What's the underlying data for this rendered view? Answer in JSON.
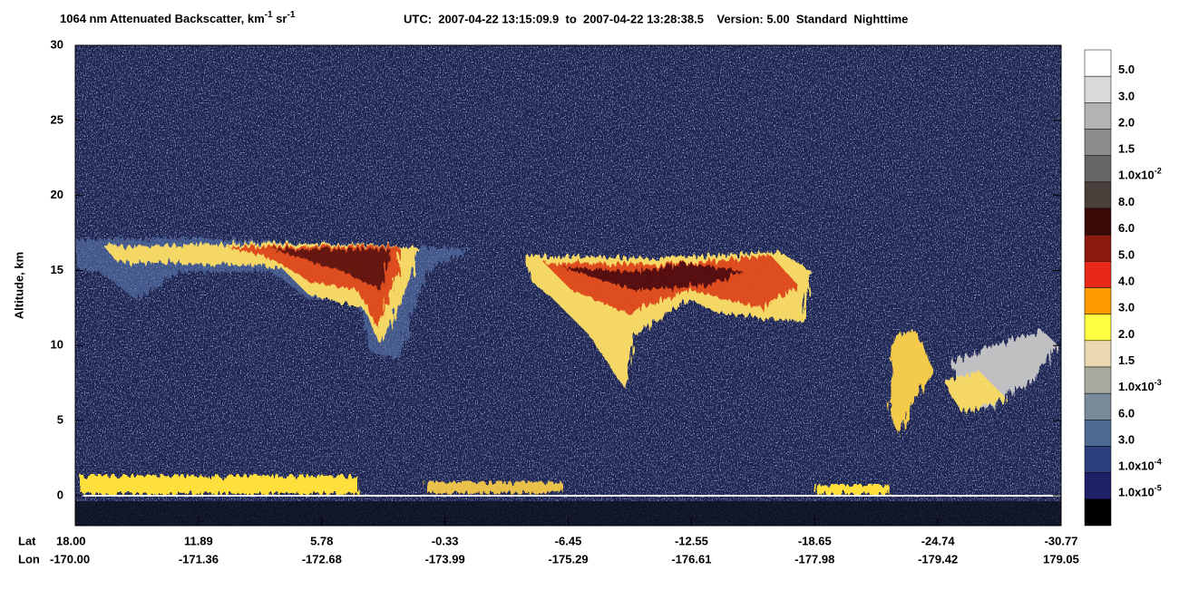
{
  "chart_data": {
    "type": "heatmap",
    "title": {
      "main": "1064 nm Attenuated Backscatter, km",
      "sup1": "-1",
      "mid": " sr",
      "sup2": "-1"
    },
    "info": "UTC:  2007-04-22 13:15:09.9  to  2007-04-22 13:28:38.5    Version: 5.00  Standard  Nighttime",
    "ylabel": "Altitude, km",
    "ylim": [
      -2,
      30
    ],
    "yticks": [
      0,
      5,
      10,
      15,
      20,
      25,
      30
    ],
    "x_row_labels": [
      "Lat",
      "Lon"
    ],
    "categories": [
      "18.00",
      "11.89",
      "5.78",
      "-0.33",
      "-6.45",
      "-12.55",
      "-18.65",
      "-24.74",
      "-30.77"
    ],
    "categories_lon": [
      "-170.00",
      "-171.36",
      "-172.68",
      "-173.99",
      "-175.29",
      "-176.61",
      "-177.98",
      "-179.42",
      "179.05"
    ],
    "colorbar": {
      "colors": [
        "#ffffff",
        "#d9d9d9",
        "#b3b3b3",
        "#8c8c8c",
        "#666666",
        "#4a3f3b",
        "#3a0a08",
        "#8b1a10",
        "#e8281a",
        "#ff9a00",
        "#ffff40",
        "#ead9b0",
        "#a8aaa0",
        "#7a8a9a",
        "#4f6a90",
        "#2e3f7e",
        "#1e2068",
        "#000000"
      ],
      "labels": [
        "5.0",
        "3.0",
        "2.0",
        "1.5",
        {
          "base": "1.0x10",
          "exp": "-2"
        },
        "8.0",
        "6.0",
        "5.0",
        "4.0",
        "3.0",
        "2.0",
        "1.5",
        {
          "base": "1.0x10",
          "exp": "-3"
        },
        "6.0",
        "3.0",
        {
          "base": "1.0x10",
          "exp": "-4"
        },
        {
          "base": "1.0x10",
          "exp": "-5"
        }
      ]
    }
  }
}
